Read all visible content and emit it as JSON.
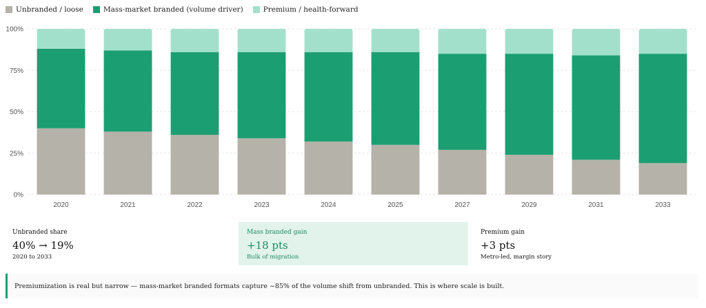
{
  "legend": {
    "unbranded": "Unbranded / loose",
    "mass": "Mass-market branded (volume driver)",
    "premium": "Premium / health-forward"
  },
  "colors": {
    "unbranded": "#b5b2a9",
    "mass": "#1c9e73",
    "premium": "#a3e0cb",
    "grid": "#e6e6e6"
  },
  "chart_data": {
    "type": "bar",
    "stacked": true,
    "categories": [
      "2020",
      "2021",
      "2022",
      "2023",
      "2024",
      "2025",
      "2027",
      "2029",
      "2031",
      "2033"
    ],
    "series": [
      {
        "name": "Unbranded / loose",
        "values": [
          40,
          38,
          36,
          34,
          32,
          30,
          27,
          24,
          21,
          19
        ]
      },
      {
        "name": "Mass-market branded (volume driver)",
        "values": [
          48,
          49,
          50,
          52,
          54,
          56,
          58,
          61,
          63,
          66
        ]
      },
      {
        "name": "Premium / health-forward",
        "values": [
          12,
          13,
          14,
          14,
          14,
          14,
          15,
          15,
          16,
          15
        ]
      }
    ],
    "yticks": [
      "0%",
      "25%",
      "50%",
      "75%",
      "100%"
    ],
    "ylim": [
      0,
      100
    ],
    "legend_position": "top-left"
  },
  "stats": {
    "unbranded": {
      "label": "Unbranded share",
      "value": "40% → 19%",
      "sub": "2020 to 2033"
    },
    "mass": {
      "label": "Mass branded gain",
      "value": "+18 pts",
      "sub": "Bulk of migration"
    },
    "premium": {
      "label": "Premium gain",
      "value": "+3 pts",
      "sub": "Metro-led, margin story"
    }
  },
  "note": "Premiumization is real but narrow — mass-market branded formats capture ~85% of the volume shift from unbranded. This is where scale is built."
}
